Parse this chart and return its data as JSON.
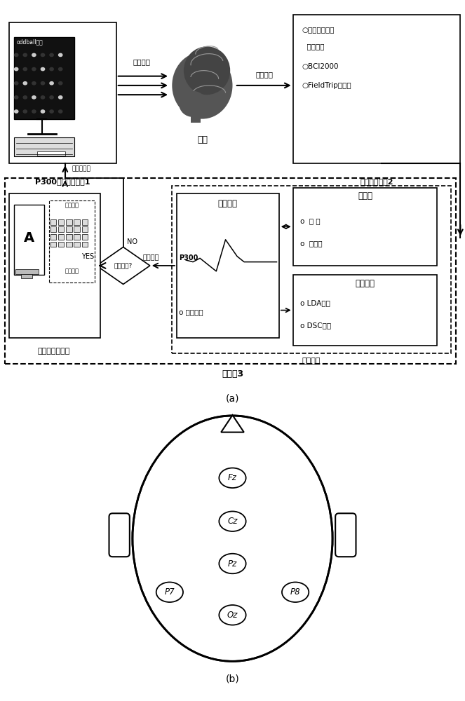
{
  "fig_width": 6.63,
  "fig_height": 10.0,
  "dpi": 100,
  "bg_color": "#ffffff",
  "panel_a_label": "(a)",
  "panel_b_label": "(b)",
  "box1_label": "P300视觉刺激装置1",
  "box2_label": "脑电采集系统2",
  "box3_label": "指令控制和显示",
  "box_computer": "计算机3",
  "user_label": "用户",
  "signal_collect": "信号采集",
  "visual_stim": "视觉刺激",
  "adaptive_code": "自适应编码",
  "feature_extract": "特征提取",
  "preprocess": "预处理",
  "classify": "分类识别",
  "signal_process": "信号处理",
  "intermediate": "中间结果",
  "threshold": "达到阈值?",
  "yes_label": "YES",
  "no_label": "NO",
  "p300_label": "P300",
  "coherent_avg": "o 相干平均",
  "filter_label": "o  滤 波",
  "downsample": "o  降采样",
  "lda_label": "o LDA算法",
  "dsc_label": "o DSC阈值",
  "cmd_ctrl": "指令控制",
  "char_spell": "字符拼写",
  "eeg_amp_1": "○脑电放大器及",
  "eeg_amp_2": "  采集软件",
  "bci2000": "○BCI2000",
  "fieldtrip": "○FieldTrip工具包",
  "electrode_labels": [
    "Fz",
    "Cz",
    "Pz",
    "P7",
    "P8",
    "Oz"
  ],
  "oddball": "oddball范式"
}
